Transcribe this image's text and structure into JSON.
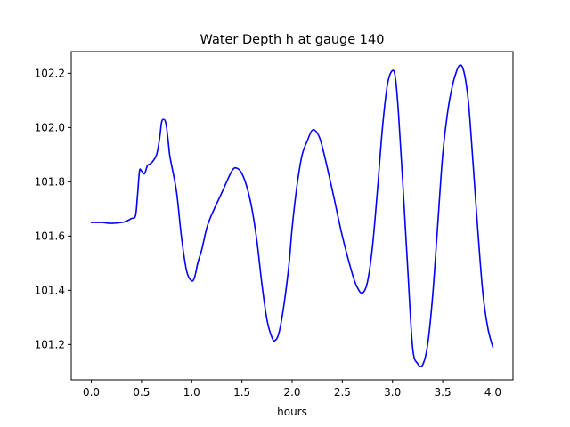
{
  "chart_data": {
    "type": "line",
    "title": "Water Depth h at gauge 140",
    "xlabel": "hours",
    "ylabel": "",
    "xlim": [
      -0.2,
      4.2
    ],
    "ylim": [
      101.07,
      102.28
    ],
    "xticks": [
      0.0,
      0.5,
      1.0,
      1.5,
      2.0,
      2.5,
      3.0,
      3.5,
      4.0
    ],
    "xtick_labels": [
      "0.0",
      "0.5",
      "1.0",
      "1.5",
      "2.0",
      "2.5",
      "3.0",
      "3.5",
      "4.0"
    ],
    "yticks": [
      101.2,
      101.4,
      101.6,
      101.8,
      102.0,
      102.2
    ],
    "ytick_labels": [
      "101.2",
      "101.4",
      "101.6",
      "101.8",
      "102.0",
      "102.2"
    ],
    "grid": false,
    "legend": "none",
    "series": [
      {
        "color": "#0000ff",
        "x": [
          0.0,
          0.1,
          0.2,
          0.3,
          0.35,
          0.4,
          0.44,
          0.46,
          0.48,
          0.5,
          0.53,
          0.56,
          0.6,
          0.65,
          0.68,
          0.7,
          0.72,
          0.74,
          0.76,
          0.78,
          0.8,
          0.85,
          0.9,
          0.95,
          1.0,
          1.03,
          1.06,
          1.1,
          1.15,
          1.2,
          1.3,
          1.4,
          1.45,
          1.5,
          1.55,
          1.6,
          1.65,
          1.7,
          1.75,
          1.8,
          1.83,
          1.87,
          1.92,
          1.97,
          2.0,
          2.05,
          2.1,
          2.15,
          2.2,
          2.25,
          2.3,
          2.4,
          2.5,
          2.6,
          2.65,
          2.7,
          2.75,
          2.8,
          2.85,
          2.9,
          2.95,
          3.0,
          3.03,
          3.06,
          3.1,
          3.15,
          3.2,
          3.25,
          3.3,
          3.35,
          3.4,
          3.45,
          3.5,
          3.55,
          3.6,
          3.64,
          3.67,
          3.7,
          3.73,
          3.76,
          3.8,
          3.85,
          3.9,
          3.95,
          4.0
        ],
        "y": [
          101.65,
          101.65,
          101.647,
          101.65,
          101.655,
          101.665,
          101.675,
          101.75,
          101.84,
          101.84,
          101.83,
          101.86,
          101.87,
          101.9,
          101.96,
          102.02,
          102.03,
          102.02,
          101.97,
          101.9,
          101.86,
          101.76,
          101.59,
          101.47,
          101.435,
          101.45,
          101.5,
          101.55,
          101.63,
          101.68,
          101.76,
          101.84,
          101.85,
          101.83,
          101.78,
          101.7,
          101.58,
          101.42,
          101.29,
          101.225,
          101.215,
          101.245,
          101.35,
          101.5,
          101.63,
          101.79,
          101.9,
          101.95,
          101.99,
          101.98,
          101.93,
          101.77,
          101.6,
          101.46,
          101.41,
          101.39,
          101.43,
          101.56,
          101.77,
          102.0,
          102.16,
          102.21,
          102.18,
          102.05,
          101.81,
          101.49,
          101.19,
          101.13,
          101.125,
          101.2,
          101.38,
          101.64,
          101.9,
          102.06,
          102.16,
          102.21,
          102.23,
          102.22,
          102.17,
          102.08,
          101.88,
          101.62,
          101.39,
          101.26,
          101.19
        ]
      }
    ]
  }
}
